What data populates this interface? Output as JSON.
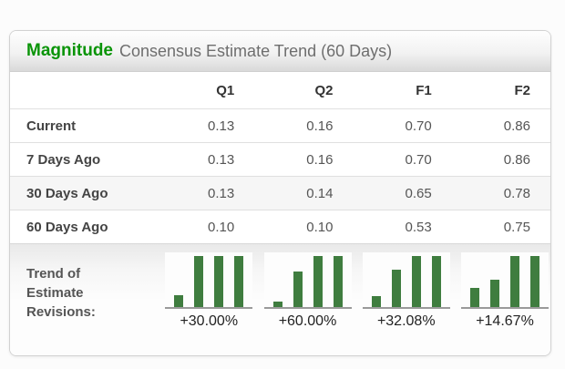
{
  "header": {
    "brand": "Magnitude",
    "subtitle": "Consensus Estimate Trend (60 Days)"
  },
  "table": {
    "columns": [
      "Q1",
      "Q2",
      "F1",
      "F2"
    ],
    "rows": [
      {
        "label": "Current",
        "values": [
          "0.13",
          "0.16",
          "0.70",
          "0.86"
        ]
      },
      {
        "label": "7 Days Ago",
        "values": [
          "0.13",
          "0.16",
          "0.70",
          "0.86"
        ]
      },
      {
        "label": "30 Days Ago",
        "values": [
          "0.13",
          "0.14",
          "0.65",
          "0.78"
        ]
      },
      {
        "label": "60 Days Ago",
        "values": [
          "0.10",
          "0.10",
          "0.53",
          "0.75"
        ]
      }
    ]
  },
  "trend": {
    "label": "Trend of Estimate Revisions:"
  },
  "chart_data": {
    "type": "bar",
    "title": "Trend of Estimate Revisions",
    "x": [
      "60 Days Ago",
      "30 Days Ago",
      "7 Days Ago",
      "Current"
    ],
    "legend": "none",
    "charts": [
      {
        "column": "Q1",
        "values": [
          0.1,
          0.13,
          0.13,
          0.13
        ],
        "change_label": "+30.00%",
        "bar_heights_rel": [
          0.23,
          1,
          1,
          1
        ]
      },
      {
        "column": "Q2",
        "values": [
          0.1,
          0.14,
          0.16,
          0.16
        ],
        "change_label": "+60.00%",
        "bar_heights_rel": [
          0.11,
          0.69,
          1,
          1
        ]
      },
      {
        "column": "F1",
        "values": [
          0.53,
          0.65,
          0.7,
          0.7
        ],
        "change_label": "+32.08%",
        "bar_heights_rel": [
          0.21,
          0.73,
          1,
          1
        ]
      },
      {
        "column": "F2",
        "values": [
          0.75,
          0.78,
          0.86,
          0.86
        ],
        "change_label": "+14.67%",
        "bar_heights_rel": [
          0.37,
          0.53,
          1,
          1
        ]
      }
    ]
  },
  "colors": {
    "brand_green": "#0a9408",
    "bar_green": "#3f7d3f"
  }
}
